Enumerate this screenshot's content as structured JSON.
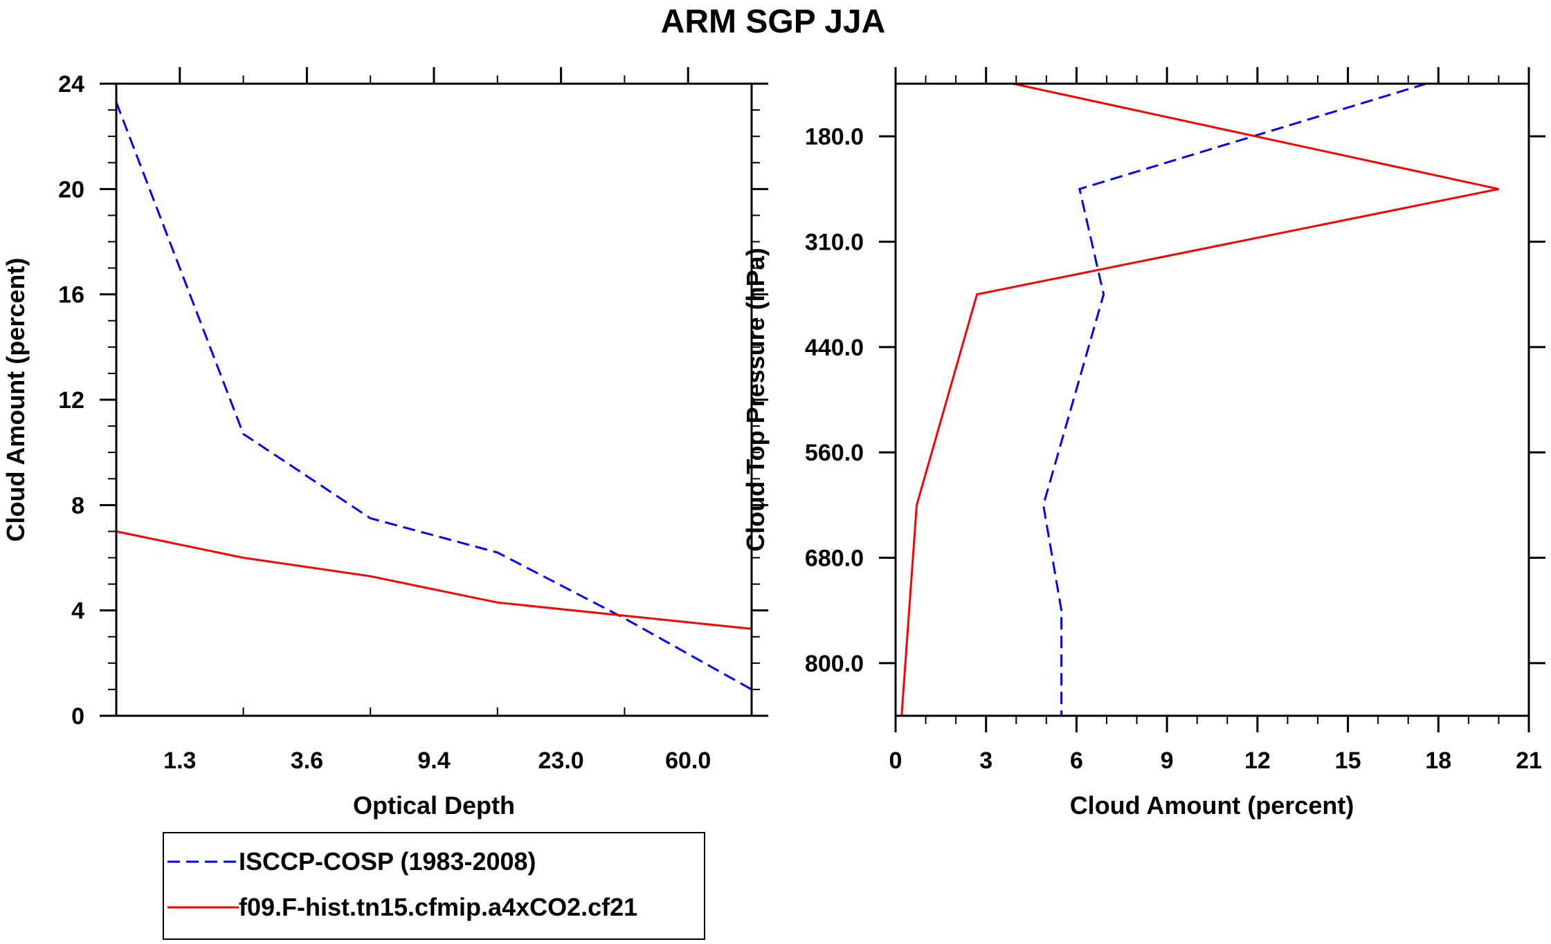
{
  "title": "ARM SGP JJA",
  "colors": {
    "isccp": "#0000ff",
    "model": "#ff0000",
    "axis": "#000000"
  },
  "legend": {
    "entries": [
      {
        "label": "ISCCP-COSP (1983-2008)",
        "style": "dashed",
        "color": "#0000ff"
      },
      {
        "label": "f09.F-hist.tn15.cfmip.a4xCO2.cf21",
        "style": "solid",
        "color": "#ff0000"
      }
    ]
  },
  "chart_data": [
    {
      "type": "line",
      "xlabel": "Optical Depth",
      "ylabel": "Cloud Amount (percent)",
      "x_categories": [
        "",
        "1.3",
        "",
        "3.6",
        "",
        "9.4",
        "",
        "23.0",
        "",
        "60.0",
        ""
      ],
      "x_tick_labels": [
        "1.3",
        "3.6",
        "9.4",
        "23.0",
        "60.0"
      ],
      "x_range": [
        0,
        10
      ],
      "y_ticks": [
        0,
        4,
        8,
        12,
        16,
        20,
        24
      ],
      "y_tick_labels": [
        "0",
        "4",
        "8",
        "12",
        "16",
        "20",
        "24"
      ],
      "ylim": [
        0,
        24
      ],
      "series": [
        {
          "name": "ISCCP-COSP (1983-2008)",
          "x": [
            0,
            2,
            4,
            6,
            8,
            10
          ],
          "values": [
            23.3,
            10.7,
            7.5,
            6.2,
            3.7,
            1.0
          ]
        },
        {
          "name": "f09.F-hist.tn15.cfmip.a4xCO2.cf21",
          "x": [
            0,
            2,
            4,
            6,
            8,
            10
          ],
          "values": [
            7.0,
            6.0,
            5.3,
            4.3,
            3.8,
            3.3
          ]
        }
      ]
    },
    {
      "type": "line",
      "xlabel": "Cloud Amount (percent)",
      "ylabel": "Cloud Top Pressure (hPa)",
      "x_ticks": [
        0,
        3,
        6,
        9,
        12,
        15,
        18,
        21
      ],
      "x_tick_labels": [
        "0",
        "3",
        "6",
        "9",
        "12",
        "15",
        "18",
        "21"
      ],
      "xlim": [
        0,
        21
      ],
      "y_ticks": [
        1,
        3,
        5,
        7,
        9,
        11
      ],
      "y_tick_labels": [
        "180.0",
        "310.0",
        "440.0",
        "560.0",
        "680.0",
        "800.0"
      ],
      "y_range": [
        0,
        12
      ],
      "y_inverted": true,
      "series": [
        {
          "name": "ISCCP-COSP (1983-2008)",
          "y": [
            0,
            2,
            4,
            8,
            10,
            12
          ],
          "values": [
            17.6,
            6.1,
            6.9,
            4.9,
            5.5,
            5.5
          ]
        },
        {
          "name": "f09.F-hist.tn15.cfmip.a4xCO2.cf21",
          "y": [
            0,
            2,
            4,
            8,
            12
          ],
          "values": [
            3.9,
            20.0,
            2.7,
            0.7,
            0.2
          ]
        }
      ]
    }
  ]
}
